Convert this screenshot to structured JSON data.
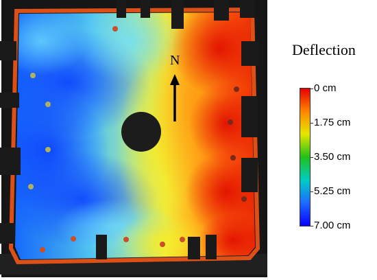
{
  "compass": {
    "label": "N"
  },
  "legend": {
    "title": "Deflection",
    "ticks": [
      {
        "label": "0 cm",
        "value": 0
      },
      {
        "label": "1.75 cm",
        "value": 1.75
      },
      {
        "label": "3.50 cm",
        "value": 3.5
      },
      {
        "label": "5.25 cm",
        "value": 5.25
      },
      {
        "label": "7.00 cm",
        "value": 7.0
      }
    ],
    "colors": [
      "#e60000",
      "#ff8800",
      "#e6e600",
      "#22c01a",
      "#00ccc4",
      "#1e6cff",
      "#0a00ff"
    ]
  },
  "colors": {
    "frame": "#161616",
    "hole": "#1c1c1c",
    "frame_edge": "#ff5a18",
    "sensor": "#c8502a"
  },
  "icons": {
    "compass": "north-arrow-icon"
  }
}
